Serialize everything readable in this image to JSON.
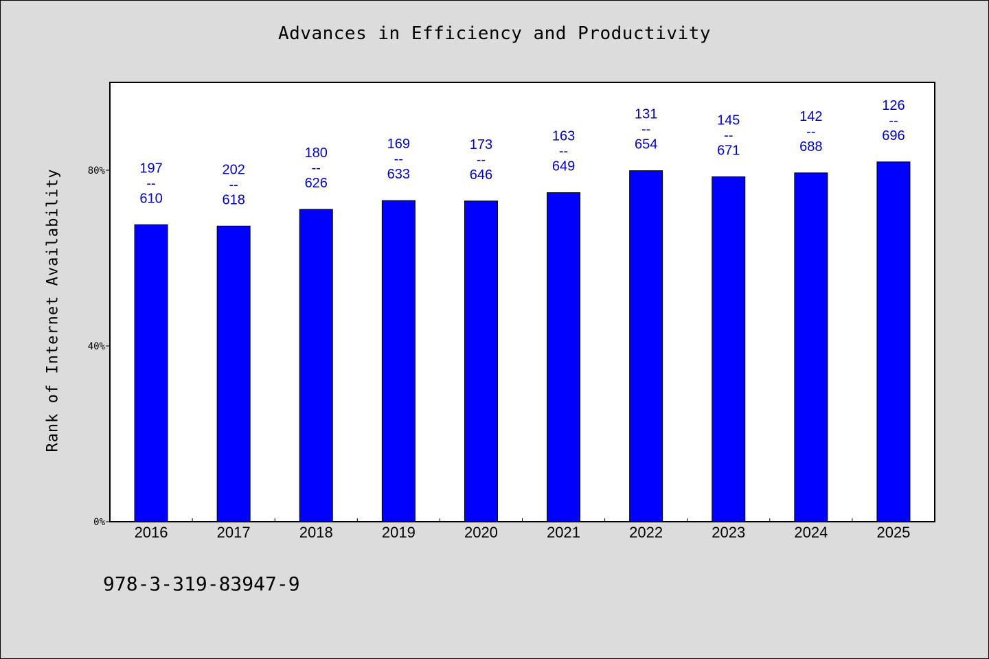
{
  "colors": {
    "background": "#dcdcdc",
    "plot_background": "#ffffff",
    "bar_fill": "#0000ff",
    "data_label": "#0000cc"
  },
  "footer": {
    "isbn": "978-3-319-83947-9"
  },
  "chart_data": {
    "type": "bar",
    "title": "Advances in Efficiency and Productivity",
    "xlabel": "",
    "ylabel": "Rank of Internet Availability",
    "categories": [
      "2016",
      "2017",
      "2018",
      "2019",
      "2020",
      "2021",
      "2022",
      "2023",
      "2024",
      "2025"
    ],
    "values": [
      67.6,
      67.3,
      71.1,
      73.1,
      73.0,
      74.9,
      79.9,
      78.5,
      79.4,
      81.9
    ],
    "value_unit": "%",
    "ylim": [
      0,
      100
    ],
    "yticks": [
      0,
      40,
      80
    ],
    "ytick_labels": [
      "0%",
      "40%",
      "80%"
    ],
    "grid": false,
    "legend": "none",
    "data_labels": [
      {
        "top": "197",
        "sep": "--",
        "bottom": "610"
      },
      {
        "top": "202",
        "sep": "--",
        "bottom": "618"
      },
      {
        "top": "180",
        "sep": "--",
        "bottom": "626"
      },
      {
        "top": "169",
        "sep": "--",
        "bottom": "633"
      },
      {
        "top": "173",
        "sep": "--",
        "bottom": "646"
      },
      {
        "top": "163",
        "sep": "--",
        "bottom": "649"
      },
      {
        "top": "131",
        "sep": "--",
        "bottom": "654"
      },
      {
        "top": "145",
        "sep": "--",
        "bottom": "671"
      },
      {
        "top": "142",
        "sep": "--",
        "bottom": "688"
      },
      {
        "top": "126",
        "sep": "--",
        "bottom": "696"
      }
    ]
  }
}
